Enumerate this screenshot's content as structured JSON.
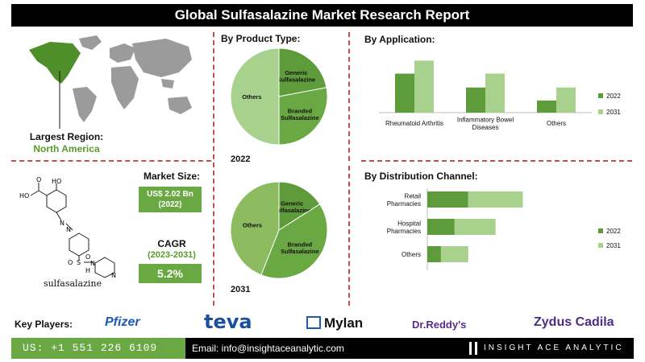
{
  "title": "Global Sulfasalazine Market Research Report",
  "largest_region": {
    "label": "Largest Region:",
    "value": "North America"
  },
  "market_size": {
    "label": "Market Size:",
    "value": "US$ 2.02 Bn",
    "year": "(2022)"
  },
  "cagr": {
    "label": "CAGR",
    "years": "(2023-2031)",
    "value": "5.2%"
  },
  "molecule": {
    "caption": "sulfasalazine",
    "atoms": {
      "hydroxyl": "HO",
      "acid": "HO",
      "carbonyl": "O",
      "n1": "N",
      "n2": "N",
      "sulfur": "S",
      "o1": "O",
      "o2": "O",
      "amide_n": "N",
      "amide_h": "H",
      "ring_n": "N"
    }
  },
  "colors": {
    "dark_green": "#5e9b3a",
    "mid_green": "#6aa843",
    "light_green": "#a9d18e",
    "pale_green": "#8dbb5f",
    "title_bg": "#000000",
    "divider": "#c0504d"
  },
  "key_players": {
    "label": "Key Players:",
    "logos": [
      "Pfizer",
      "teva",
      "Mylan",
      "Dr.Reddy's",
      "Zydus Cadila"
    ]
  },
  "footer": {
    "phone": "US: +1 551 226 6109",
    "email": "Email: info@insightaceanalytic.com",
    "brand": "INSIGHT ACE ANALYTIC"
  },
  "chart_data": [
    {
      "type": "pie",
      "title": "By Product Type:",
      "year": "2022",
      "slices": [
        {
          "label": "Generic Sulfasalazine",
          "value": 22,
          "color": "#5e9b3a"
        },
        {
          "label": "Branded Sulfasalazine",
          "value": 28,
          "color": "#6aa843"
        },
        {
          "label": "Others",
          "value": 50,
          "color": "#a9d18e"
        }
      ]
    },
    {
      "type": "pie",
      "title": "",
      "year": "2031",
      "slices": [
        {
          "label": "Generic Sulfasalazine",
          "value": 16,
          "color": "#5e9b3a"
        },
        {
          "label": "Branded Sulfasalazine",
          "value": 40,
          "color": "#6aa843"
        },
        {
          "label": "Others",
          "value": 44,
          "color": "#8dbb5f"
        }
      ]
    },
    {
      "type": "bar",
      "orientation": "vertical",
      "title": "By Application:",
      "categories": [
        "Rheumatoid Arthritis",
        "Inflammatory Bowel Diseases",
        "Others"
      ],
      "series": [
        {
          "name": "2022",
          "values": [
            45,
            29,
            14
          ],
          "color": "#5e9b3a"
        },
        {
          "name": "2031",
          "values": [
            60,
            45,
            29
          ],
          "color": "#a9d18e"
        }
      ],
      "ylim": [
        0,
        65
      ],
      "legend": "right"
    },
    {
      "type": "bar",
      "orientation": "horizontal",
      "stacked": true,
      "title": "By Distribution Channel:",
      "categories": [
        "Retail Pharmacies",
        "Hospital Pharmacies",
        "Others"
      ],
      "series": [
        {
          "name": "2022",
          "values": [
            60,
            40,
            20
          ],
          "color": "#5e9b3a"
        },
        {
          "name": "2031",
          "values": [
            80,
            60,
            40
          ],
          "color": "#a9d18e"
        }
      ],
      "xlim": [
        0,
        260
      ],
      "legend": "right"
    }
  ]
}
